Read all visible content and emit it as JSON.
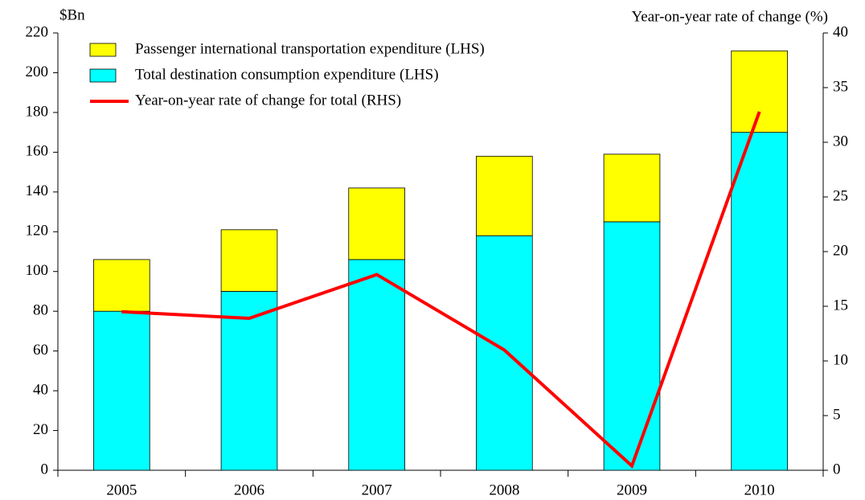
{
  "chart_data": {
    "type": "bar",
    "ylabel": "$Bn",
    "y2label": "Year-on-year rate of change (%)",
    "categories": [
      "2005",
      "2006",
      "2007",
      "2008",
      "2009",
      "2010"
    ],
    "series": [
      {
        "name": "Passenger international transportation expenditure (LHS)",
        "color": "#ffff00",
        "values": [
          26,
          31,
          36,
          40,
          34,
          41
        ]
      },
      {
        "name": "Total destination consumption expenditure (LHS)",
        "color": "#00ffff",
        "values": [
          80,
          90,
          106,
          118,
          125,
          170
        ]
      },
      {
        "name": "Year-on-year rate of change for total (RHS)",
        "color": "#ff0000",
        "type": "line",
        "axis": "y2",
        "values": [
          14.5,
          13.9,
          17.9,
          11.0,
          0.4,
          32.8
        ]
      }
    ],
    "ylim": [
      0,
      220
    ],
    "yticks": [
      0,
      20,
      40,
      60,
      80,
      100,
      120,
      140,
      160,
      180,
      200,
      220
    ],
    "y2lim": [
      0,
      40
    ],
    "y2ticks": [
      0,
      5,
      10,
      15,
      20,
      25,
      30,
      35,
      40
    ],
    "legend": "upper left"
  }
}
